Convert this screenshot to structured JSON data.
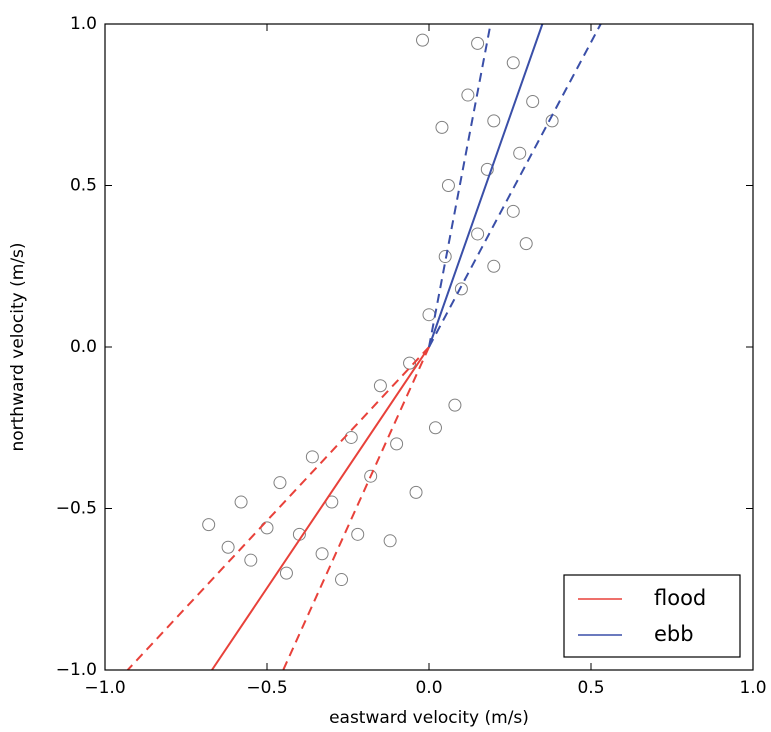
{
  "chart_data": {
    "type": "scatter",
    "xlabel": "eastward velocity (m/s)",
    "ylabel": "northward velocity (m/s)",
    "xlim": [
      -1,
      1
    ],
    "ylim": [
      -1,
      1
    ],
    "xticks": [
      {
        "value": -1,
        "label": "−1.0"
      },
      {
        "value": -0.5,
        "label": "−0.5"
      },
      {
        "value": 0,
        "label": "0.0"
      },
      {
        "value": 0.5,
        "label": "0.5"
      },
      {
        "value": 1,
        "label": "1.0"
      }
    ],
    "yticks": [
      {
        "value": -1,
        "label": "−1.0"
      },
      {
        "value": -0.5,
        "label": "−0.5"
      },
      {
        "value": 0,
        "label": "0.0"
      },
      {
        "value": 0.5,
        "label": "0.5"
      },
      {
        "value": 1,
        "label": "1.0"
      }
    ],
    "legend": "lower right",
    "points": {
      "color": "#808080",
      "x": [
        -0.68,
        -0.62,
        -0.58,
        -0.55,
        -0.5,
        -0.46,
        -0.44,
        -0.4,
        -0.36,
        -0.33,
        -0.3,
        -0.27,
        -0.24,
        -0.22,
        -0.18,
        -0.15,
        -0.12,
        -0.1,
        -0.06,
        -0.04,
        0.02,
        0.08,
        0,
        0.05,
        0.1,
        0.15,
        0.2,
        0.26,
        0.3,
        0.06,
        0.18,
        0.28,
        0.04,
        0.12,
        0.2,
        0.26,
        0.32,
        0.15,
        -0.02,
        0.38
      ],
      "values": [
        -0.55,
        -0.62,
        -0.48,
        -0.66,
        -0.56,
        -0.42,
        -0.7,
        -0.58,
        -0.34,
        -0.64,
        -0.48,
        -0.72,
        -0.28,
        -0.58,
        -0.4,
        -0.12,
        -0.6,
        -0.3,
        -0.05,
        -0.45,
        -0.25,
        -0.18,
        0.1,
        0.28,
        0.18,
        0.35,
        0.25,
        0.42,
        0.32,
        0.5,
        0.55,
        0.6,
        0.68,
        0.78,
        0.7,
        0.88,
        0.76,
        0.94,
        0.95,
        0.7
      ]
    },
    "series": [
      {
        "name": "flood",
        "color": "#e8413a",
        "x": [
          0,
          -0.67
        ],
        "values": [
          0,
          -1
        ]
      },
      {
        "name": "ebb",
        "color": "#3a4fa8",
        "x": [
          0,
          0.35
        ],
        "values": [
          0,
          1
        ]
      }
    ],
    "bounds_style": "dashed",
    "bounds": [
      {
        "color": "#e8413a",
        "x": [
          0,
          -0.93
        ],
        "values": [
          0,
          -1
        ]
      },
      {
        "color": "#e8413a",
        "x": [
          0,
          -0.45
        ],
        "values": [
          0,
          -1
        ]
      },
      {
        "color": "#3a4fa8",
        "x": [
          0,
          0.19
        ],
        "values": [
          0,
          1
        ]
      },
      {
        "color": "#3a4fa8",
        "x": [
          0,
          0.53
        ],
        "values": [
          0,
          1
        ]
      }
    ]
  }
}
